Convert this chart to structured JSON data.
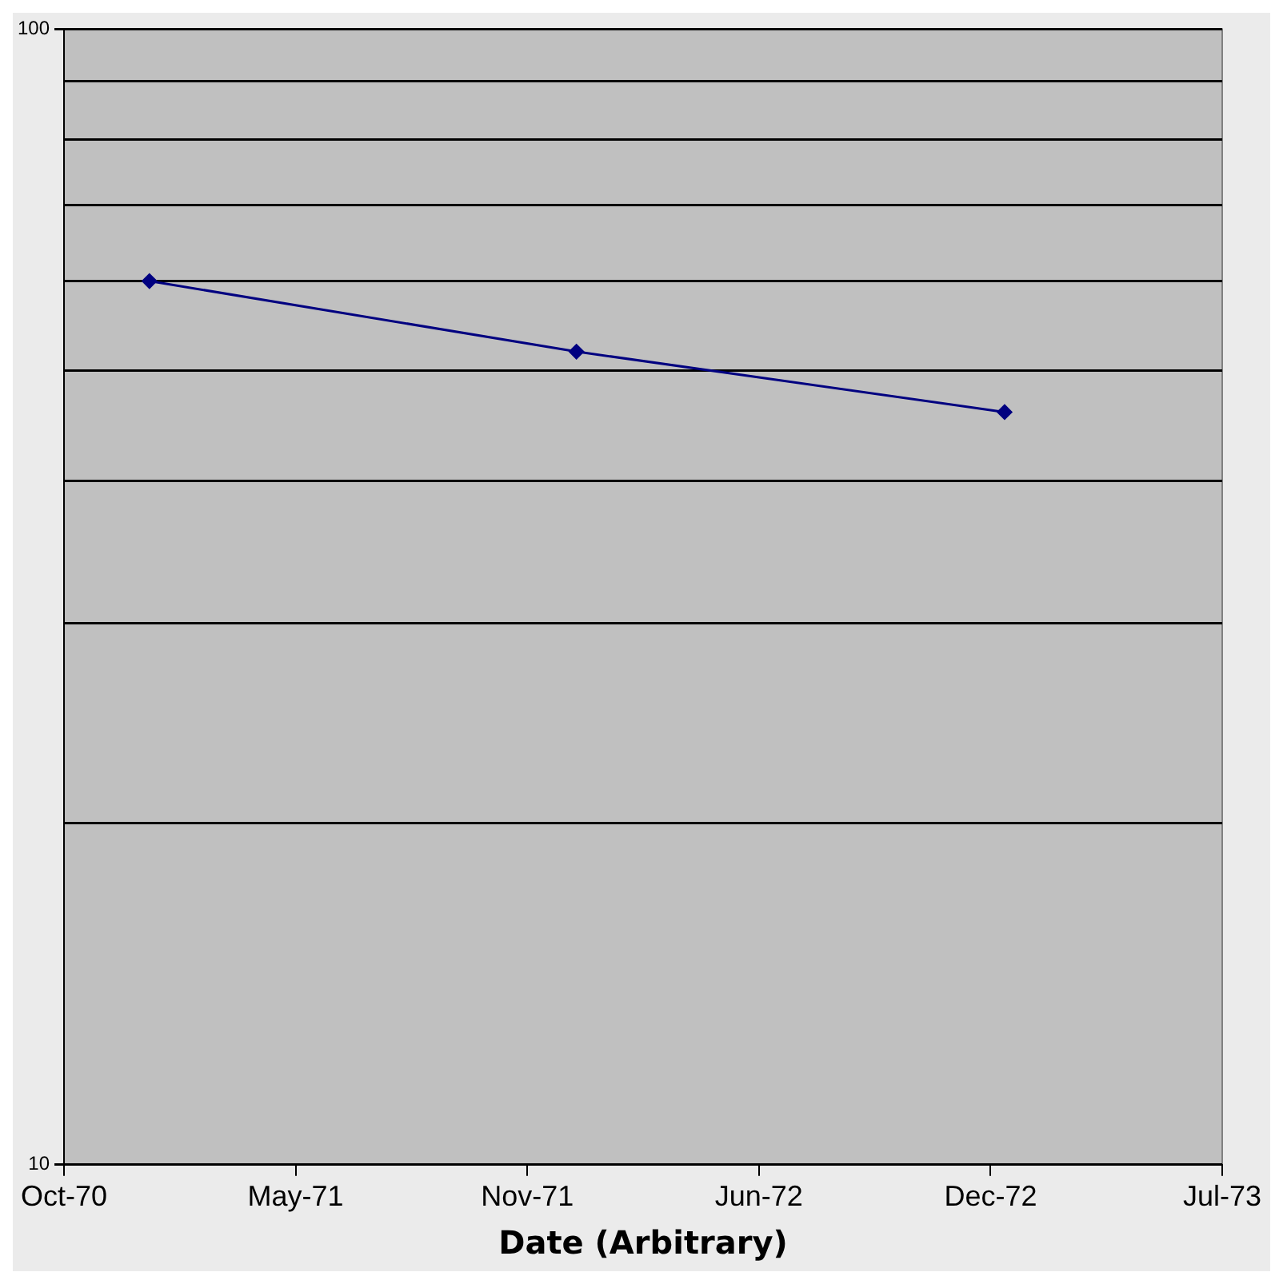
{
  "chart_data": {
    "type": "line",
    "xlabel": "Date (Arbitrary)",
    "x": [
      "1971-01-01",
      "1972-01-01",
      "1973-01-01"
    ],
    "series": [
      {
        "color": "#000080",
        "values": [
          60,
          52,
          46
        ]
      }
    ],
    "xlim": [
      "1970-10-20",
      "1973-07-06"
    ],
    "xticks": [
      {
        "value": "1970-10-20",
        "label": "Oct-70"
      },
      {
        "value": "1971-05-06",
        "label": "May-71"
      },
      {
        "value": "1971-11-20",
        "label": "Nov-71"
      },
      {
        "value": "1972-06-05",
        "label": "Jun-72"
      },
      {
        "value": "1972-12-20",
        "label": "Dec-72"
      },
      {
        "value": "1973-07-06",
        "label": "Jul-73"
      }
    ],
    "ylim": [
      10,
      100
    ],
    "yticks": [
      10,
      {
        "value": 20,
        "label": null
      },
      {
        "value": 30,
        "label": null
      },
      {
        "value": 40,
        "label": null
      },
      {
        "value": 50,
        "label": null
      },
      {
        "value": 60,
        "label": null
      },
      {
        "value": 70,
        "label": null
      },
      {
        "value": 80,
        "label": null
      },
      {
        "value": 90,
        "label": null
      },
      100
    ],
    "log": true,
    "grid": "y",
    "marker": "diamond",
    "line_style": "solid",
    "legend": false
  }
}
